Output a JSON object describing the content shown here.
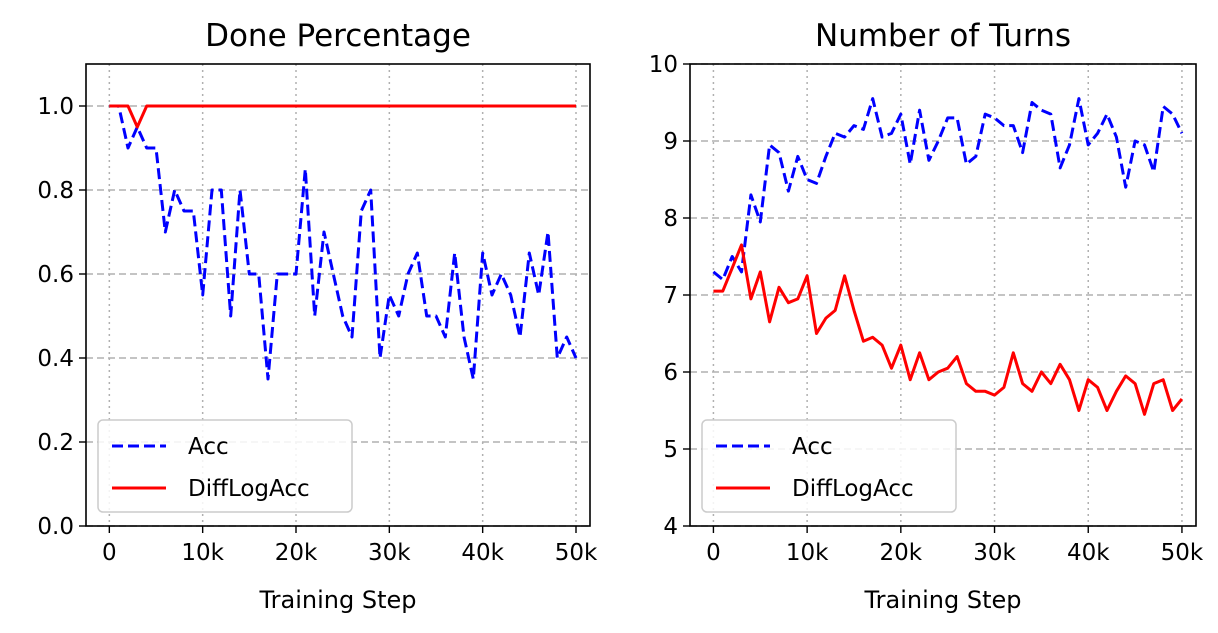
{
  "colors": {
    "acc": "#0000ff",
    "difflogacc": "#ff0000",
    "grid": "#b0b0b0"
  },
  "chart_data": [
    {
      "type": "line",
      "title": "Done Percentage",
      "xlabel": "Training Step",
      "ylabel": "",
      "xlim": [
        -2.5,
        51.5
      ],
      "ylim": [
        0,
        1.1
      ],
      "xticks": [
        0,
        10,
        20,
        30,
        40,
        50
      ],
      "xticklabels": [
        "0",
        "10k",
        "20k",
        "30k",
        "40k",
        "50k"
      ],
      "yticks": [
        0,
        0.2,
        0.4,
        0.6,
        0.8,
        1.0
      ],
      "yticklabels": [
        "0.0",
        "0.2",
        "0.4",
        "0.6",
        "0.8",
        "1.0"
      ],
      "grid": true,
      "legend": "lower-left",
      "x_unit": "thousand steps",
      "series": [
        {
          "name": "Acc",
          "style": "dashed",
          "color": "#0000ff",
          "x": [
            0,
            1,
            2,
            3,
            4,
            5,
            6,
            7,
            8,
            9,
            10,
            11,
            12,
            13,
            14,
            15,
            16,
            17,
            18,
            19,
            20,
            21,
            22,
            23,
            24,
            25,
            26,
            27,
            28,
            29,
            30,
            31,
            32,
            33,
            34,
            35,
            36,
            37,
            38,
            39,
            40,
            41,
            42,
            43,
            44,
            45,
            46,
            47,
            48,
            49,
            50
          ],
          "y": [
            1.0,
            1.0,
            0.9,
            0.95,
            0.9,
            0.9,
            0.7,
            0.8,
            0.75,
            0.75,
            0.55,
            0.8,
            0.8,
            0.5,
            0.8,
            0.6,
            0.6,
            0.35,
            0.6,
            0.6,
            0.6,
            0.85,
            0.5,
            0.7,
            0.6,
            0.5,
            0.45,
            0.75,
            0.8,
            0.4,
            0.55,
            0.5,
            0.6,
            0.65,
            0.5,
            0.5,
            0.45,
            0.65,
            0.45,
            0.35,
            0.65,
            0.55,
            0.6,
            0.55,
            0.45,
            0.65,
            0.55,
            0.7,
            0.4,
            0.45,
            0.4
          ]
        },
        {
          "name": "DiffLogAcc",
          "style": "solid",
          "color": "#ff0000",
          "x": [
            0,
            1,
            2,
            3,
            4,
            5,
            6,
            7,
            8,
            9,
            10,
            11,
            12,
            13,
            14,
            15,
            16,
            17,
            18,
            19,
            20,
            21,
            22,
            23,
            24,
            25,
            26,
            27,
            28,
            29,
            30,
            31,
            32,
            33,
            34,
            35,
            36,
            37,
            38,
            39,
            40,
            41,
            42,
            43,
            44,
            45,
            46,
            47,
            48,
            49,
            50
          ],
          "y": [
            1.0,
            1.0,
            1.0,
            0.95,
            1.0,
            1.0,
            1.0,
            1.0,
            1.0,
            1.0,
            1.0,
            1.0,
            1.0,
            1.0,
            1.0,
            1.0,
            1.0,
            1.0,
            1.0,
            1.0,
            1.0,
            1.0,
            1.0,
            1.0,
            1.0,
            1.0,
            1.0,
            1.0,
            1.0,
            1.0,
            1.0,
            1.0,
            1.0,
            1.0,
            1.0,
            1.0,
            1.0,
            1.0,
            1.0,
            1.0,
            1.0,
            1.0,
            1.0,
            1.0,
            1.0,
            1.0,
            1.0,
            1.0,
            1.0,
            1.0,
            1.0
          ]
        }
      ]
    },
    {
      "type": "line",
      "title": "Number of Turns",
      "xlabel": "Training Step",
      "ylabel": "",
      "xlim": [
        -2.5,
        51.5
      ],
      "ylim": [
        4,
        10
      ],
      "xticks": [
        0,
        10,
        20,
        30,
        40,
        50
      ],
      "xticklabels": [
        "0",
        "10k",
        "20k",
        "30k",
        "40k",
        "50k"
      ],
      "yticks": [
        4,
        5,
        6,
        7,
        8,
        9,
        10
      ],
      "yticklabels": [
        "4",
        "5",
        "6",
        "7",
        "8",
        "9",
        "10"
      ],
      "grid": true,
      "legend": "lower-left",
      "x_unit": "thousand steps",
      "series": [
        {
          "name": "Acc",
          "style": "dashed",
          "color": "#0000ff",
          "x": [
            0,
            1,
            2,
            3,
            4,
            5,
            6,
            7,
            8,
            9,
            10,
            11,
            12,
            13,
            14,
            15,
            16,
            17,
            18,
            19,
            20,
            21,
            22,
            23,
            24,
            25,
            26,
            27,
            28,
            29,
            30,
            31,
            32,
            33,
            34,
            35,
            36,
            37,
            38,
            39,
            40,
            41,
            42,
            43,
            44,
            45,
            46,
            47,
            48,
            49,
            50
          ],
          "y": [
            7.3,
            7.2,
            7.5,
            7.3,
            8.3,
            7.95,
            8.95,
            8.85,
            8.35,
            8.8,
            8.5,
            8.45,
            8.8,
            9.1,
            9.05,
            9.2,
            9.15,
            9.55,
            9.05,
            9.1,
            9.35,
            8.7,
            9.4,
            8.75,
            9.0,
            9.3,
            9.3,
            8.7,
            8.8,
            9.35,
            9.3,
            9.2,
            9.2,
            8.85,
            9.5,
            9.4,
            9.35,
            8.65,
            8.95,
            9.55,
            8.95,
            9.1,
            9.35,
            9.05,
            8.4,
            9.0,
            8.95,
            8.6,
            9.45,
            9.35,
            9.1
          ]
        },
        {
          "name": "DiffLogAcc",
          "style": "solid",
          "color": "#ff0000",
          "x": [
            0,
            1,
            2,
            3,
            4,
            5,
            6,
            7,
            8,
            9,
            10,
            11,
            12,
            13,
            14,
            15,
            16,
            17,
            18,
            19,
            20,
            21,
            22,
            23,
            24,
            25,
            26,
            27,
            28,
            29,
            30,
            31,
            32,
            33,
            34,
            35,
            36,
            37,
            38,
            39,
            40,
            41,
            42,
            43,
            44,
            45,
            46,
            47,
            48,
            49,
            50
          ],
          "y": [
            7.05,
            7.05,
            7.35,
            7.65,
            6.95,
            7.3,
            6.65,
            7.1,
            6.9,
            6.95,
            7.25,
            6.5,
            6.7,
            6.8,
            7.25,
            6.8,
            6.4,
            6.45,
            6.35,
            6.05,
            6.35,
            5.9,
            6.25,
            5.9,
            6.0,
            6.05,
            6.2,
            5.85,
            5.75,
            5.75,
            5.7,
            5.8,
            6.25,
            5.85,
            5.75,
            6.0,
            5.85,
            6.1,
            5.9,
            5.5,
            5.9,
            5.8,
            5.5,
            5.75,
            5.95,
            5.85,
            5.45,
            5.85,
            5.9,
            5.5,
            5.65
          ]
        }
      ]
    }
  ]
}
